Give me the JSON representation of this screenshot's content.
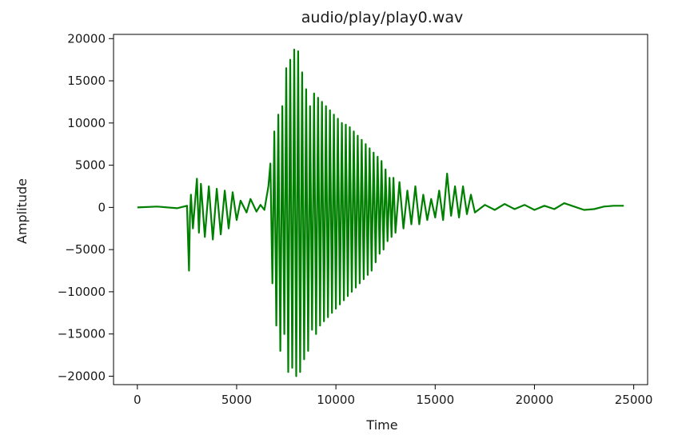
{
  "chart_data": {
    "type": "line",
    "title": "audio/play/play0.wav",
    "xlabel": "Time",
    "ylabel": "Amplitude",
    "xlim": [
      -1200,
      25700
    ],
    "ylim": [
      -21000,
      20500
    ],
    "xticks": [
      0,
      5000,
      10000,
      15000,
      20000,
      25000
    ],
    "xtick_labels": [
      "0",
      "5000",
      "10000",
      "15000",
      "20000",
      "25000"
    ],
    "yticks": [
      20000,
      15000,
      10000,
      5000,
      0,
      -5000,
      -10000,
      -15000,
      -20000
    ],
    "ytick_labels": [
      "20000",
      "15000",
      "10000",
      "5000",
      "0",
      "−5000",
      "−10000",
      "−15000",
      "−20000"
    ],
    "grid": false,
    "series": [
      {
        "color": "#008000",
        "x": [
          0,
          1000,
          2000,
          2500,
          2600,
          2650,
          2700,
          2800,
          3000,
          3100,
          3200,
          3400,
          3600,
          3800,
          4000,
          4200,
          4400,
          4600,
          4800,
          5000,
          5200,
          5500,
          5700,
          6000,
          6200,
          6400,
          6600,
          6700,
          6800,
          6900,
          7000,
          7100,
          7200,
          7300,
          7400,
          7500,
          7600,
          7700,
          7800,
          7900,
          8000,
          8100,
          8200,
          8300,
          8400,
          8500,
          8600,
          8700,
          8800,
          8900,
          9000,
          9100,
          9200,
          9300,
          9400,
          9500,
          9600,
          9700,
          9800,
          9900,
          10000,
          10100,
          10200,
          10300,
          10400,
          10500,
          10600,
          10700,
          10800,
          10900,
          11000,
          11100,
          11200,
          11300,
          11400,
          11500,
          11600,
          11700,
          11800,
          11900,
          12000,
          12100,
          12200,
          12300,
          12400,
          12500,
          12600,
          12700,
          12800,
          12900,
          13000,
          13200,
          13400,
          13600,
          13800,
          14000,
          14200,
          14400,
          14600,
          14800,
          15000,
          15200,
          15400,
          15600,
          15800,
          16000,
          16200,
          16400,
          16600,
          16800,
          17000,
          17500,
          18000,
          18500,
          19000,
          19500,
          20000,
          20500,
          21000,
          21500,
          22000,
          22500,
          23000,
          23500,
          24000,
          24500
        ],
        "y": [
          0,
          100,
          -100,
          200,
          -7500,
          -1000,
          1500,
          -2500,
          3400,
          -3000,
          2800,
          -3500,
          2500,
          -3800,
          2200,
          -3200,
          2000,
          -2500,
          1800,
          -1500,
          800,
          -600,
          1000,
          -500,
          300,
          -300,
          2500,
          5200,
          -9000,
          9000,
          -14000,
          11000,
          -17000,
          12000,
          -15000,
          16500,
          -19500,
          17500,
          -19000,
          18700,
          -20000,
          18500,
          -19500,
          16000,
          -18000,
          14000,
          -17000,
          12000,
          -14500,
          13500,
          -15000,
          13000,
          -14000,
          12500,
          -13500,
          12000,
          -13000,
          11500,
          -12500,
          11000,
          -12000,
          10500,
          -11500,
          10000,
          -11000,
          9800,
          -10500,
          9500,
          -10000,
          9000,
          -9500,
          8500,
          -9000,
          8000,
          -8500,
          7500,
          -8000,
          7000,
          -7500,
          6500,
          -6500,
          6000,
          -5500,
          5500,
          -5000,
          4500,
          -4000,
          3500,
          -3500,
          3500,
          -3000,
          3000,
          -2500,
          2000,
          -2000,
          2500,
          -2000,
          1500,
          -1500,
          1000,
          -1200,
          2000,
          -1500,
          4000,
          -1000,
          2500,
          -1200,
          2500,
          -800,
          1500,
          -600,
          300,
          -300,
          400,
          -200,
          300,
          -300,
          200,
          -200,
          500,
          100,
          -300,
          -200,
          100,
          200,
          200
        ]
      }
    ]
  }
}
